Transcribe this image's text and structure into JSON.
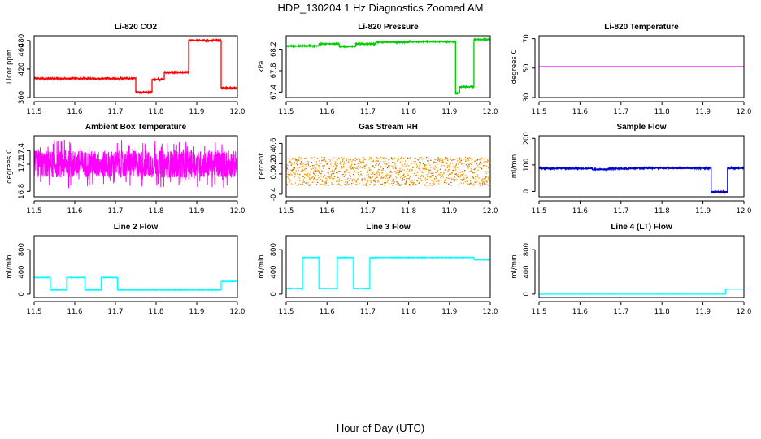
{
  "figure": {
    "title": "HDP_130204  1 Hz Diagnostics Zoomed AM",
    "xlabel": "Hour of Day (UTC)"
  },
  "chart_data": [
    {
      "type": "line",
      "title": "Li-820 CO2",
      "ylabel": "Licor ppm",
      "color": "#ff0000",
      "xlim": [
        11.5,
        12.0
      ],
      "ylim": [
        360,
        490
      ],
      "xticks": [
        "11.5",
        "11.6",
        "11.7",
        "11.8",
        "11.9",
        "12.0"
      ],
      "yticks": [
        360,
        420,
        460,
        480
      ],
      "noise": 1.5,
      "segments": [
        [
          11.5,
          11.75,
          400
        ],
        [
          11.75,
          11.79,
          371
        ],
        [
          11.79,
          11.82,
          398
        ],
        [
          11.82,
          11.84,
          413
        ],
        [
          11.84,
          11.88,
          413
        ],
        [
          11.88,
          11.96,
          480
        ],
        [
          11.96,
          12.0,
          380
        ]
      ]
    },
    {
      "type": "line",
      "title": "Li-820 Pressure",
      "ylabel": "kPa",
      "color": "#00cc00",
      "xlim": [
        11.5,
        12.0
      ],
      "ylim": [
        67.3,
        68.45
      ],
      "xticks": [
        "11.5",
        "11.6",
        "11.7",
        "11.8",
        "11.9",
        "12.0"
      ],
      "yticks": [
        67.4,
        67.8,
        68.2
      ],
      "yticklabels": [
        "67.4",
        "67.8",
        "68.2"
      ],
      "noise": 0.008,
      "segments": [
        [
          11.5,
          11.58,
          68.26
        ],
        [
          11.58,
          11.63,
          68.3
        ],
        [
          11.63,
          11.67,
          68.25
        ],
        [
          11.67,
          11.72,
          68.3
        ],
        [
          11.72,
          11.8,
          68.33
        ],
        [
          11.8,
          11.915,
          68.34
        ],
        [
          11.915,
          11.925,
          67.38
        ],
        [
          11.925,
          11.96,
          67.5
        ],
        [
          11.96,
          12.0,
          68.38
        ]
      ]
    },
    {
      "type": "line",
      "title": "Li-820 Temperature",
      "ylabel": "degrees C",
      "color": "#ff00ff",
      "xlim": [
        11.5,
        12.0
      ],
      "ylim": [
        30,
        72
      ],
      "xticks": [
        "11.5",
        "11.6",
        "11.7",
        "11.8",
        "11.9",
        "12.0"
      ],
      "yticks": [
        30,
        50,
        70
      ],
      "noise": 0,
      "segments": [
        [
          11.5,
          12.0,
          51
        ]
      ]
    },
    {
      "type": "line",
      "title": "Ambient Box Temperature",
      "ylabel": "degrees C",
      "color": "#ff00ff",
      "xlim": [
        11.5,
        12.0
      ],
      "ylim": [
        16.72,
        17.62
      ],
      "xticks": [
        "11.5",
        "11.6",
        "11.7",
        "11.8",
        "11.9",
        "12.0"
      ],
      "yticks": [
        16.8,
        17.2,
        17.4
      ],
      "yticklabels": [
        "16.8",
        "17.2",
        "17.4"
      ],
      "noise": 0.2,
      "spiky": true,
      "segments": [
        [
          11.5,
          12.0,
          17.2
        ]
      ]
    },
    {
      "type": "scatter",
      "title": "Gas Stream RH",
      "ylabel": "percent",
      "color": "#ff9900",
      "color2": "#996600",
      "xlim": [
        11.5,
        12.0
      ],
      "ylim": [
        -0.45,
        0.75
      ],
      "xticks": [
        "11.5",
        "11.6",
        "11.7",
        "11.8",
        "11.9",
        "12.0"
      ],
      "yticks": [
        -0.4,
        0.0,
        0.2,
        0.4,
        0.6
      ],
      "yticklabels": [
        "-0.4",
        "0.0",
        "0.2",
        "0.4",
        "0.6"
      ],
      "noise": 0.28,
      "segments": [
        [
          11.5,
          12.0,
          0.05
        ]
      ]
    },
    {
      "type": "line",
      "title": "Sample Flow",
      "ylabel": "ml/min",
      "color": "#0000cc",
      "xlim": [
        11.5,
        12.0
      ],
      "ylim": [
        -20,
        210
      ],
      "xticks": [
        "11.5",
        "11.6",
        "11.7",
        "11.8",
        "11.9",
        "12.0"
      ],
      "yticks": [
        0,
        100,
        200
      ],
      "noise": 2,
      "segments": [
        [
          11.5,
          11.63,
          87
        ],
        [
          11.63,
          11.67,
          83
        ],
        [
          11.67,
          11.72,
          86
        ],
        [
          11.72,
          11.92,
          88
        ],
        [
          11.92,
          11.96,
          -2
        ],
        [
          11.96,
          12.0,
          88
        ]
      ]
    },
    {
      "type": "line",
      "title": "Line 2 Flow",
      "ylabel": "ml/min",
      "color": "#00ffff",
      "xlim": [
        11.5,
        12.0
      ],
      "ylim": [
        -60,
        1050
      ],
      "xticks": [
        "11.5",
        "11.6",
        "11.7",
        "11.8",
        "11.9",
        "12.0"
      ],
      "yticks": [
        0,
        400,
        800
      ],
      "noise": 4,
      "segments": [
        [
          11.5,
          11.54,
          300
        ],
        [
          11.54,
          11.58,
          75
        ],
        [
          11.58,
          11.625,
          300
        ],
        [
          11.625,
          11.665,
          75
        ],
        [
          11.665,
          11.705,
          300
        ],
        [
          11.705,
          11.96,
          75
        ],
        [
          11.96,
          12.0,
          230
        ]
      ]
    },
    {
      "type": "line",
      "title": "Line 3 Flow",
      "ylabel": "ml/min",
      "color": "#00ffff",
      "xlim": [
        11.5,
        12.0
      ],
      "ylim": [
        -60,
        1050
      ],
      "xticks": [
        "11.5",
        "11.6",
        "11.7",
        "11.8",
        "11.9",
        "12.0"
      ],
      "yticks": [
        0,
        400,
        800
      ],
      "noise": 4,
      "segments": [
        [
          11.5,
          11.54,
          100
        ],
        [
          11.54,
          11.58,
          660
        ],
        [
          11.58,
          11.625,
          100
        ],
        [
          11.625,
          11.665,
          660
        ],
        [
          11.665,
          11.705,
          100
        ],
        [
          11.705,
          11.96,
          660
        ],
        [
          11.96,
          12.0,
          620
        ]
      ]
    },
    {
      "type": "line",
      "title": "Line 4 (LT) Flow",
      "ylabel": "ml/min",
      "color": "#00ffff",
      "xlim": [
        11.5,
        12.0
      ],
      "ylim": [
        -60,
        1050
      ],
      "xticks": [
        "11.5",
        "11.6",
        "11.7",
        "11.8",
        "11.9",
        "12.0"
      ],
      "yticks": [
        0,
        400,
        800
      ],
      "noise": 1,
      "segments": [
        [
          11.5,
          11.955,
          0
        ],
        [
          11.955,
          12.0,
          90
        ]
      ]
    }
  ]
}
